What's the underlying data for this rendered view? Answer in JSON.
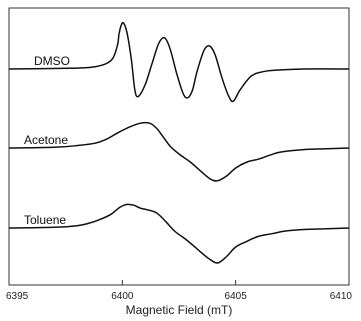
{
  "chart_data": {
    "type": "line",
    "title": "",
    "xlabel": "Magnetic Field (mT)",
    "ylabel": "",
    "xlim": [
      6395,
      6410
    ],
    "x_ticks": [
      6395,
      6400,
      6405,
      6410
    ],
    "x_tick_labels": [
      "6395",
      "6400",
      "6405",
      "6410"
    ],
    "grid": false,
    "y_ticks": false,
    "series": [
      {
        "name": "DMSO",
        "x": [
          6395.0,
          6398.0,
          6398.8,
          6399.3,
          6399.6,
          6399.8,
          6399.85,
          6399.95,
          6400.05,
          6400.2,
          6400.4,
          6400.55,
          6400.7,
          6401.0,
          6401.3,
          6401.6,
          6401.85,
          6402.1,
          6402.4,
          6402.7,
          6402.9,
          6403.1,
          6403.3,
          6403.6,
          6403.85,
          6404.1,
          6404.4,
          6404.7,
          6404.9,
          6405.2,
          6405.7,
          6406.3,
          6407.0,
          6408.0,
          6410.0
        ],
        "y": [
          0.0,
          0.02,
          0.05,
          0.12,
          0.25,
          0.55,
          0.75,
          0.95,
          1.0,
          0.8,
          0.2,
          -0.45,
          -0.6,
          -0.35,
          0.1,
          0.55,
          0.68,
          0.45,
          -0.1,
          -0.55,
          -0.62,
          -0.45,
          -0.05,
          0.4,
          0.5,
          0.3,
          -0.2,
          -0.6,
          -0.7,
          -0.45,
          -0.15,
          -0.05,
          -0.02,
          0.0,
          0.0
        ]
      },
      {
        "name": "Acetone",
        "x": [
          6395.0,
          6397.0,
          6398.0,
          6398.8,
          6399.3,
          6399.8,
          6400.3,
          6400.8,
          6401.2,
          6401.5,
          6401.8,
          6402.1,
          6402.5,
          6403.0,
          6403.5,
          6403.9,
          6404.2,
          6404.6,
          6405.0,
          6405.5,
          6406.0,
          6406.5,
          6407.0,
          6408.0,
          6409.0,
          6410.0
        ],
        "y": [
          0.0,
          0.02,
          0.06,
          0.12,
          0.22,
          0.38,
          0.52,
          0.62,
          0.62,
          0.5,
          0.28,
          0.05,
          -0.15,
          -0.35,
          -0.6,
          -0.78,
          -0.82,
          -0.7,
          -0.5,
          -0.35,
          -0.28,
          -0.18,
          -0.1,
          -0.04,
          -0.02,
          0.0
        ]
      },
      {
        "name": "Toluene",
        "x": [
          6395.0,
          6397.0,
          6398.0,
          6398.5,
          6399.0,
          6399.5,
          6399.9,
          6400.2,
          6400.5,
          6400.8,
          6401.1,
          6401.5,
          6401.9,
          6402.3,
          6402.8,
          6403.3,
          6403.8,
          6404.2,
          6404.6,
          6405.0,
          6405.5,
          6406.0,
          6406.6,
          6407.2,
          6408.0,
          6409.0,
          6410.0
        ],
        "y": [
          0.0,
          0.02,
          0.06,
          0.12,
          0.22,
          0.36,
          0.55,
          0.62,
          0.6,
          0.52,
          0.48,
          0.4,
          0.18,
          -0.08,
          -0.3,
          -0.55,
          -0.8,
          -0.92,
          -0.75,
          -0.5,
          -0.35,
          -0.22,
          -0.15,
          -0.08,
          -0.04,
          -0.02,
          0.0
        ]
      }
    ]
  }
}
